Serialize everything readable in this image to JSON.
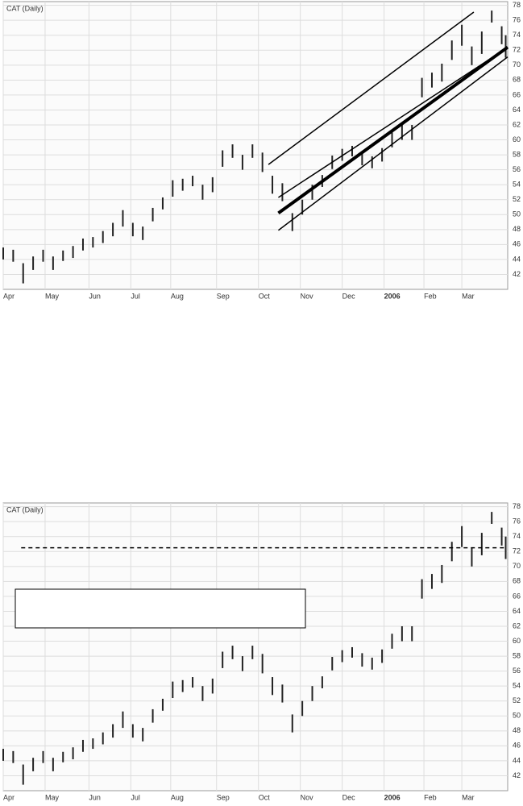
{
  "chart_data": [
    {
      "type": "ohlc",
      "title": "CAT (Daily)",
      "color": "#222222",
      "grid": true,
      "xlim": [
        0,
        253
      ],
      "ylim": [
        40,
        78.5
      ],
      "xticks": [
        {
          "value": 0,
          "label": "Apr"
        },
        {
          "value": 21,
          "label": "May"
        },
        {
          "value": 43,
          "label": "Jun"
        },
        {
          "value": 64,
          "label": "Jul"
        },
        {
          "value": 84,
          "label": "Aug"
        },
        {
          "value": 107,
          "label": "Sep"
        },
        {
          "value": 128,
          "label": "Oct"
        },
        {
          "value": 149,
          "label": "Nov"
        },
        {
          "value": 170,
          "label": "Dec"
        },
        {
          "value": 191,
          "label": "2006",
          "bold": true
        },
        {
          "value": 211,
          "label": "Feb"
        },
        {
          "value": 230,
          "label": "Mar"
        }
      ],
      "yticks": [
        42,
        44,
        46,
        48,
        50,
        52,
        54,
        56,
        58,
        60,
        62,
        64,
        66,
        68,
        70,
        72,
        74,
        76,
        78
      ],
      "x": [
        0,
        5,
        10,
        15,
        20,
        25,
        30,
        35,
        40,
        45,
        50,
        55,
        60,
        65,
        70,
        75,
        80,
        85,
        90,
        95,
        100,
        105,
        110,
        115,
        120,
        125,
        130,
        135,
        140,
        145,
        150,
        155,
        160,
        165,
        170,
        175,
        180,
        185,
        190,
        195,
        200,
        205,
        210,
        215,
        220,
        225,
        230,
        235,
        240,
        245,
        250,
        252
      ],
      "high": [
        45.6,
        45.3,
        43.5,
        44.4,
        45.3,
        44.4,
        45.2,
        45.8,
        46.8,
        47,
        47.8,
        48.9,
        50.6,
        48.9,
        48.4,
        50.9,
        52.3,
        54.6,
        54.8,
        55.2,
        54,
        55,
        58.6,
        59.4,
        58,
        59.4,
        58.3,
        55.2,
        54.2,
        50.2,
        52,
        54,
        55.3,
        57.9,
        58.8,
        59.2,
        58.4,
        57.8,
        58.9,
        61,
        62,
        62,
        68.3,
        69,
        70.2,
        73.3,
        75.4,
        72.5,
        74.5,
        77.3,
        75.2,
        74
      ],
      "low": [
        44,
        43.7,
        40.8,
        42.6,
        43.7,
        42.6,
        43.8,
        44.2,
        45.2,
        45.6,
        46.2,
        47.1,
        48.4,
        47.1,
        46.6,
        49.1,
        50.7,
        52.4,
        53.2,
        53.8,
        52,
        53,
        56.4,
        57.6,
        56,
        57.6,
        55.7,
        52.8,
        51.8,
        47.8,
        50,
        52,
        53.7,
        56.1,
        57.2,
        57.8,
        56.6,
        56.2,
        57.1,
        59,
        60,
        60,
        65.7,
        67,
        67.8,
        70.7,
        72.6,
        70,
        71.5,
        75.7,
        72.8,
        71
      ],
      "lines": [
        {
          "x": [
            133,
            236
          ],
          "y": [
            56.7,
            77.1
          ],
          "width": 1.5
        },
        {
          "x": [
            138,
            248
          ],
          "y": [
            52.3,
            71.5
          ],
          "width": 1.5
        },
        {
          "x": [
            138,
            253
          ],
          "y": [
            50.2,
            72.4
          ],
          "width": 4
        },
        {
          "x": [
            138,
            253
          ],
          "y": [
            47.9,
            71.1
          ],
          "width": 1.5
        }
      ]
    },
    {
      "type": "ohlc",
      "title": "CAT (Daily)",
      "color": "#222222",
      "grid": true,
      "xlim": [
        0,
        253
      ],
      "ylim": [
        40,
        78.5
      ],
      "xticks": [
        {
          "value": 0,
          "label": "Apr"
        },
        {
          "value": 21,
          "label": "May"
        },
        {
          "value": 43,
          "label": "Jun"
        },
        {
          "value": 64,
          "label": "Jul"
        },
        {
          "value": 84,
          "label": "Aug"
        },
        {
          "value": 107,
          "label": "Sep"
        },
        {
          "value": 128,
          "label": "Oct"
        },
        {
          "value": 149,
          "label": "Nov"
        },
        {
          "value": 170,
          "label": "Dec"
        },
        {
          "value": 191,
          "label": "2006",
          "bold": true
        },
        {
          "value": 211,
          "label": "Feb"
        },
        {
          "value": 230,
          "label": "Mar"
        }
      ],
      "yticks": [
        42,
        44,
        46,
        48,
        50,
        52,
        54,
        56,
        58,
        60,
        62,
        64,
        66,
        68,
        70,
        72,
        74,
        76,
        78
      ],
      "x": [
        0,
        5,
        10,
        15,
        20,
        25,
        30,
        35,
        40,
        45,
        50,
        55,
        60,
        65,
        70,
        75,
        80,
        85,
        90,
        95,
        100,
        105,
        110,
        115,
        120,
        125,
        130,
        135,
        140,
        145,
        150,
        155,
        160,
        165,
        170,
        175,
        180,
        185,
        190,
        195,
        200,
        205,
        210,
        215,
        220,
        225,
        230,
        235,
        240,
        245,
        250,
        252
      ],
      "high": [
        45.6,
        45.3,
        43.5,
        44.4,
        45.3,
        44.4,
        45.2,
        45.8,
        46.8,
        47,
        47.8,
        48.9,
        50.6,
        48.9,
        48.4,
        50.9,
        52.3,
        54.6,
        54.8,
        55.2,
        54,
        55,
        58.6,
        59.4,
        58,
        59.4,
        58.3,
        55.2,
        54.2,
        50.2,
        52,
        54,
        55.3,
        57.9,
        58.8,
        59.2,
        58.4,
        57.8,
        58.9,
        61,
        62,
        62,
        68.3,
        69,
        70.2,
        73.3,
        75.4,
        72.5,
        74.5,
        77.3,
        75.2,
        74
      ],
      "low": [
        44,
        43.7,
        40.8,
        42.6,
        43.7,
        42.6,
        43.8,
        44.2,
        45.2,
        45.6,
        46.2,
        47.1,
        48.4,
        47.1,
        46.6,
        49.1,
        50.7,
        52.4,
        53.2,
        53.8,
        52,
        53,
        56.4,
        57.6,
        56,
        57.6,
        55.7,
        52.8,
        51.8,
        47.8,
        50,
        52,
        53.7,
        56.1,
        57.2,
        57.8,
        56.6,
        56.2,
        57.1,
        59,
        60,
        60,
        65.7,
        67,
        67.8,
        70.7,
        72.6,
        70,
        71.5,
        75.7,
        72.8,
        71
      ],
      "hlines": [
        {
          "y": 72.5,
          "x": [
            9,
            252
          ],
          "dash": true
        }
      ]
    }
  ]
}
